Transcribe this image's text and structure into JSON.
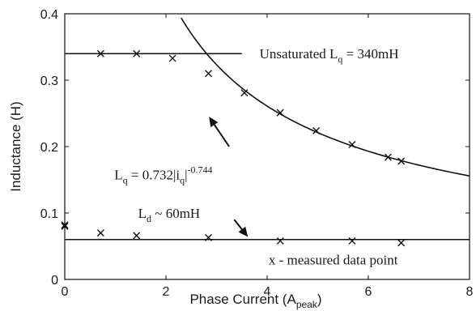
{
  "chart_data": {
    "type": "scatter",
    "xlabel": "Phase Current (A",
    "xlabel_sub": "peak",
    "xlabel_close": ")",
    "ylabel": "Inductance (H)",
    "xlim": [
      0,
      8
    ],
    "ylim": [
      0,
      0.4
    ],
    "x_ticks": [
      0,
      2,
      4,
      6,
      8
    ],
    "y_ticks": [
      0,
      0.1,
      0.2,
      0.3,
      0.4
    ],
    "x_tick_labels": [
      "0",
      "2",
      "4",
      "6",
      "8"
    ],
    "y_tick_labels": [
      "0",
      "0.1",
      "0.2",
      "0.3",
      "0.4"
    ],
    "grid": false,
    "series": [
      {
        "marker": "x",
        "x": [
          0,
          0.71,
          1.42,
          2.13,
          2.84,
          3.55,
          4.26,
          4.97,
          5.68,
          6.39,
          6.65
        ],
        "y": [
          0.08,
          0.34,
          0.34,
          0.333,
          0.31,
          0.281,
          0.251,
          0.224,
          0.203,
          0.184,
          0.178
        ]
      },
      {
        "marker": "x",
        "x": [
          0,
          0.71,
          1.42,
          2.84,
          4.26,
          5.68,
          6.65
        ],
        "y": [
          0.082,
          0.07,
          0.066,
          0.063,
          0.058,
          0.058,
          0.055
        ]
      }
    ],
    "lines": {
      "lq_unsaturated": {
        "y": 0.34,
        "x_range": [
          0,
          3.5
        ]
      },
      "ld": {
        "y": 0.06,
        "x_range": [
          0,
          8
        ]
      },
      "fit_curve": {
        "coefficient": 0.732,
        "exponent": -0.744,
        "x_range": [
          2.3,
          8
        ]
      }
    },
    "arrows": [
      {
        "from": [
          3.25,
          0.2
        ],
        "to": [
          2.85,
          0.245
        ]
      },
      {
        "from": [
          3.35,
          0.09
        ],
        "to": [
          3.62,
          0.064
        ]
      }
    ],
    "annotations": {
      "unsaturated": {
        "prefix": "Unsaturated L",
        "sub": "q",
        "suffix": " = 340mH",
        "x": 3.85,
        "y": 0.34
      },
      "ld": {
        "prefix": "L",
        "sub": "d",
        "suffix": " ~ 60mH",
        "x": 1.45,
        "y": 0.1
      },
      "fit": {
        "prefix": "L",
        "sub": "q",
        "middle": " = 0.732|i",
        "sub2": "q",
        "suffix": "|",
        "sup": "-0.744",
        "x": 0.98,
        "y": 0.158
      },
      "measured": {
        "text": "x - measured data point",
        "x": 4.03,
        "y": 0.03
      }
    }
  }
}
